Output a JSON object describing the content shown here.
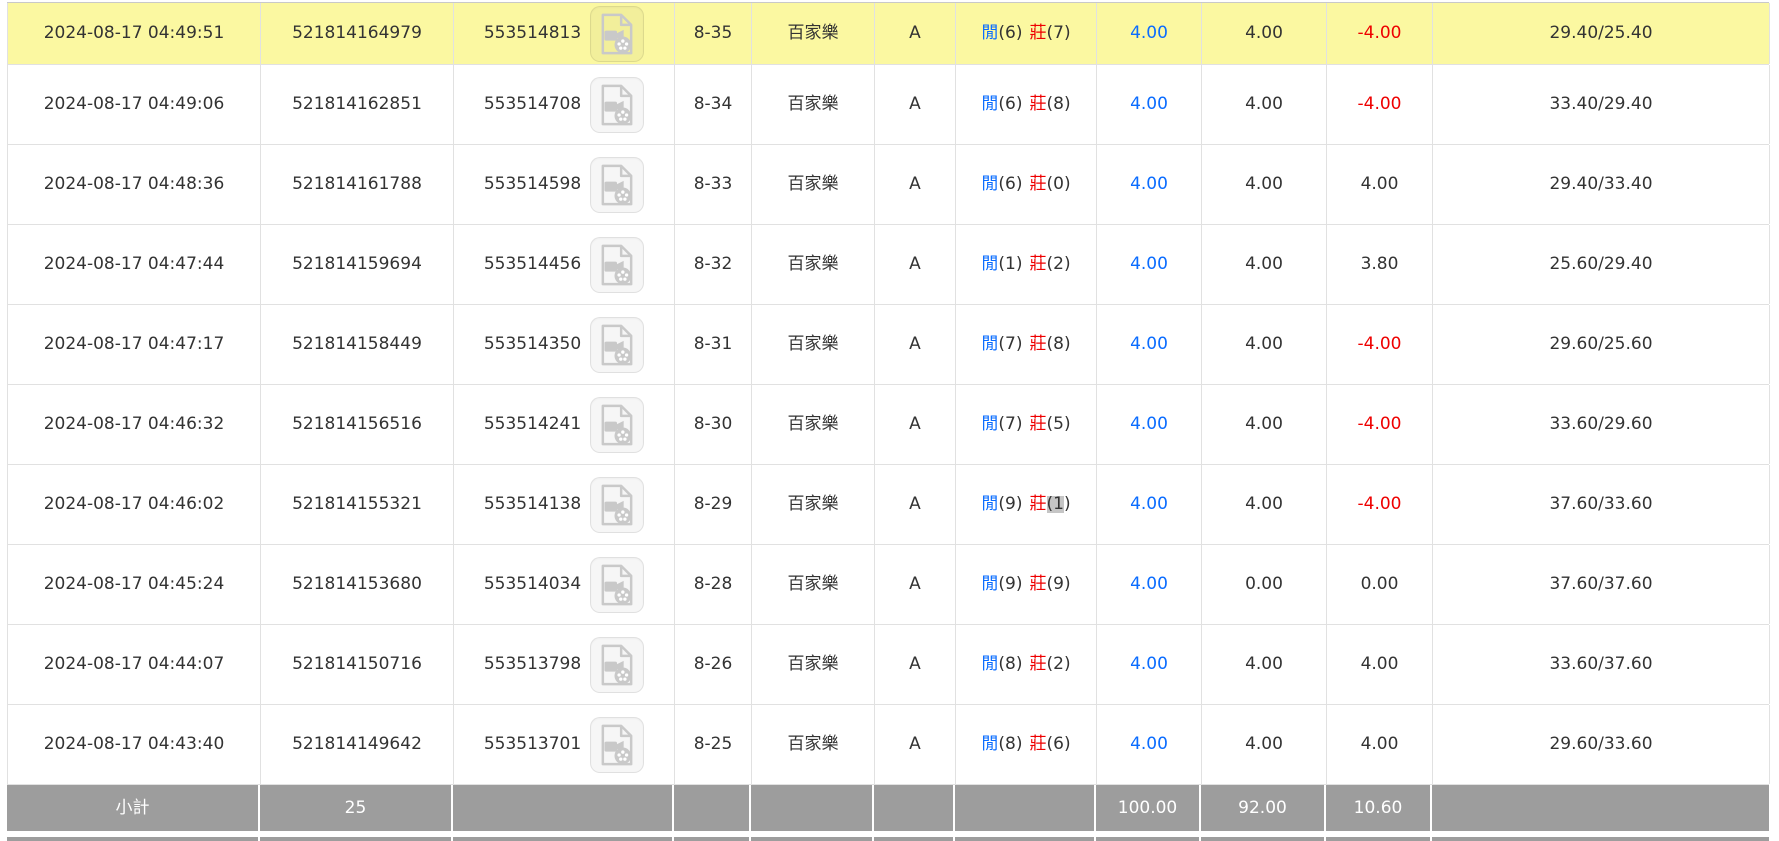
{
  "colors": {
    "highlight_yellow": "#fbf8a1",
    "summary_gray": "#9d9d9d",
    "blue": "#0a6cff",
    "red": "#ee0000",
    "text": "#333333",
    "selection_gray": "#c5c5c5",
    "border": "#e1e1e1"
  },
  "icons": {
    "video_icon_name": "video-replay-icon"
  },
  "table": {
    "rows": [
      {
        "time": "2024-08-17 04:49:51",
        "bet_id": "521814164979",
        "round_id": "553514813",
        "table_no": "8-35",
        "game": "百家樂",
        "zone": "A",
        "player_label": "閒",
        "player_score": "6",
        "banker_label": "莊",
        "banker_score": "7",
        "bet": "4.00",
        "valid": "4.00",
        "win_loss": "-4.00",
        "balance": "29.40/25.40",
        "highlighted": true,
        "banker_selected": false
      },
      {
        "time": "2024-08-17 04:49:06",
        "bet_id": "521814162851",
        "round_id": "553514708",
        "table_no": "8-34",
        "game": "百家樂",
        "zone": "A",
        "player_label": "閒",
        "player_score": "6",
        "banker_label": "莊",
        "banker_score": "8",
        "bet": "4.00",
        "valid": "4.00",
        "win_loss": "-4.00",
        "balance": "33.40/29.40",
        "highlighted": false,
        "banker_selected": false
      },
      {
        "time": "2024-08-17 04:48:36",
        "bet_id": "521814161788",
        "round_id": "553514598",
        "table_no": "8-33",
        "game": "百家樂",
        "zone": "A",
        "player_label": "閒",
        "player_score": "6",
        "banker_label": "莊",
        "banker_score": "0",
        "bet": "4.00",
        "valid": "4.00",
        "win_loss": "4.00",
        "balance": "29.40/33.40",
        "highlighted": false,
        "banker_selected": false
      },
      {
        "time": "2024-08-17 04:47:44",
        "bet_id": "521814159694",
        "round_id": "553514456",
        "table_no": "8-32",
        "game": "百家樂",
        "zone": "A",
        "player_label": "閒",
        "player_score": "1",
        "banker_label": "莊",
        "banker_score": "2",
        "bet": "4.00",
        "valid": "4.00",
        "win_loss": "3.80",
        "balance": "25.60/29.40",
        "highlighted": false,
        "banker_selected": false
      },
      {
        "time": "2024-08-17 04:47:17",
        "bet_id": "521814158449",
        "round_id": "553514350",
        "table_no": "8-31",
        "game": "百家樂",
        "zone": "A",
        "player_label": "閒",
        "player_score": "7",
        "banker_label": "莊",
        "banker_score": "8",
        "bet": "4.00",
        "valid": "4.00",
        "win_loss": "-4.00",
        "balance": "29.60/25.60",
        "highlighted": false,
        "banker_selected": false
      },
      {
        "time": "2024-08-17 04:46:32",
        "bet_id": "521814156516",
        "round_id": "553514241",
        "table_no": "8-30",
        "game": "百家樂",
        "zone": "A",
        "player_label": "閒",
        "player_score": "7",
        "banker_label": "莊",
        "banker_score": "5",
        "bet": "4.00",
        "valid": "4.00",
        "win_loss": "-4.00",
        "balance": "33.60/29.60",
        "highlighted": false,
        "banker_selected": false
      },
      {
        "time": "2024-08-17 04:46:02",
        "bet_id": "521814155321",
        "round_id": "553514138",
        "table_no": "8-29",
        "game": "百家樂",
        "zone": "A",
        "player_label": "閒",
        "player_score": "9",
        "banker_label": "莊",
        "banker_score": "1",
        "bet": "4.00",
        "valid": "4.00",
        "win_loss": "-4.00",
        "balance": "37.60/33.60",
        "highlighted": false,
        "banker_selected": true
      },
      {
        "time": "2024-08-17 04:45:24",
        "bet_id": "521814153680",
        "round_id": "553514034",
        "table_no": "8-28",
        "game": "百家樂",
        "zone": "A",
        "player_label": "閒",
        "player_score": "9",
        "banker_label": "莊",
        "banker_score": "9",
        "bet": "4.00",
        "valid": "0.00",
        "win_loss": "0.00",
        "balance": "37.60/37.60",
        "highlighted": false,
        "banker_selected": false
      },
      {
        "time": "2024-08-17 04:44:07",
        "bet_id": "521814150716",
        "round_id": "553513798",
        "table_no": "8-26",
        "game": "百家樂",
        "zone": "A",
        "player_label": "閒",
        "player_score": "8",
        "banker_label": "莊",
        "banker_score": "2",
        "bet": "4.00",
        "valid": "4.00",
        "win_loss": "4.00",
        "balance": "33.60/37.60",
        "highlighted": false,
        "banker_selected": false
      },
      {
        "time": "2024-08-17 04:43:40",
        "bet_id": "521814149642",
        "round_id": "553513701",
        "table_no": "8-25",
        "game": "百家樂",
        "zone": "A",
        "player_label": "閒",
        "player_score": "8",
        "banker_label": "莊",
        "banker_score": "6",
        "bet": "4.00",
        "valid": "4.00",
        "win_loss": "4.00",
        "balance": "29.60/33.60",
        "highlighted": false,
        "banker_selected": false
      }
    ],
    "summary": {
      "label": "小計",
      "count": "25",
      "bet_total": "100.00",
      "valid_total": "92.00",
      "win_loss_total": "10.60"
    }
  }
}
